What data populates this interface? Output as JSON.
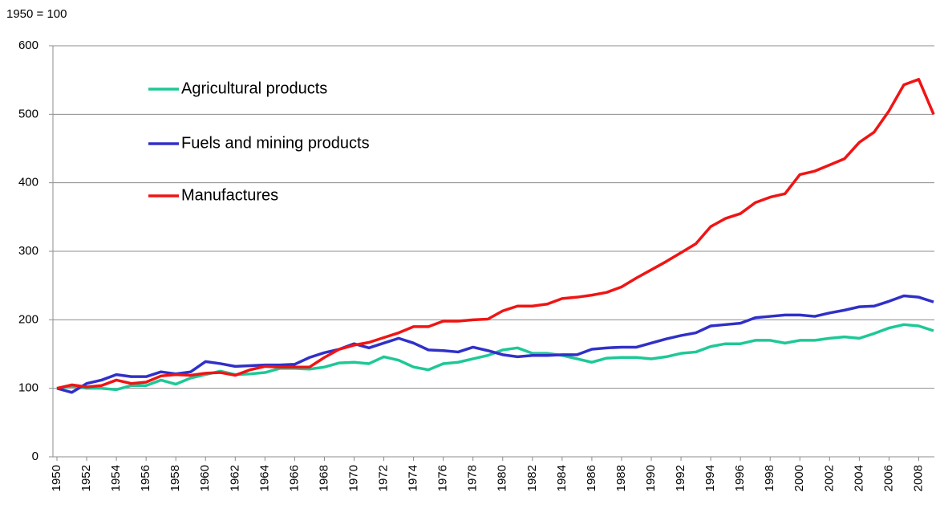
{
  "chart_data": {
    "type": "line",
    "ylabel": "1950 = 100",
    "x": [
      1950,
      1951,
      1952,
      1953,
      1954,
      1955,
      1956,
      1957,
      1958,
      1959,
      1960,
      1961,
      1962,
      1963,
      1964,
      1965,
      1966,
      1967,
      1968,
      1969,
      1970,
      1971,
      1972,
      1973,
      1974,
      1975,
      1976,
      1977,
      1978,
      1979,
      1980,
      1981,
      1982,
      1983,
      1984,
      1985,
      1986,
      1987,
      1988,
      1989,
      1990,
      1991,
      1992,
      1993,
      1994,
      1995,
      1996,
      1997,
      1998,
      1999,
      2000,
      2001,
      2002,
      2003,
      2004,
      2005,
      2006,
      2007,
      2008,
      2009
    ],
    "series": [
      {
        "name": "Agricultural products",
        "color": "#1ec896",
        "values": [
          100,
          103,
          100,
          100,
          98,
          104,
          104,
          112,
          106,
          115,
          120,
          125,
          120,
          121,
          123,
          129,
          129,
          128,
          131,
          137,
          138,
          136,
          146,
          141,
          131,
          127,
          136,
          138,
          143,
          148,
          156,
          159,
          151,
          151,
          148,
          143,
          138,
          144,
          145,
          145,
          143,
          146,
          151,
          153,
          161,
          165,
          165,
          170,
          170,
          166,
          170,
          170,
          173,
          175,
          173,
          180,
          188,
          193,
          191,
          184
        ]
      },
      {
        "name": "Fuels and mining products",
        "color": "#3030c8",
        "values": [
          100,
          94,
          107,
          112,
          120,
          117,
          117,
          124,
          121,
          124,
          139,
          136,
          132,
          133,
          134,
          134,
          135,
          145,
          152,
          157,
          165,
          159,
          166,
          173,
          166,
          156,
          155,
          153,
          160,
          155,
          149,
          146,
          148,
          148,
          149,
          149,
          157,
          159,
          160,
          160,
          166,
          172,
          177,
          181,
          191,
          193,
          195,
          203,
          205,
          207,
          207,
          205,
          210,
          214,
          219,
          220,
          227,
          235,
          233,
          226
        ]
      },
      {
        "name": "Manufactures",
        "color": "#f01414",
        "values": [
          100,
          105,
          102,
          104,
          112,
          107,
          109,
          118,
          120,
          119,
          122,
          123,
          119,
          127,
          132,
          131,
          131,
          131,
          145,
          157,
          163,
          167,
          174,
          181,
          190,
          190,
          198,
          198,
          200,
          201,
          213,
          220,
          220,
          223,
          231,
          233,
          236,
          240,
          248,
          261,
          273,
          285,
          298,
          311,
          336,
          348,
          355,
          371,
          379,
          384,
          412,
          417,
          426,
          435,
          459,
          474,
          505,
          543,
          551,
          500
        ]
      }
    ],
    "xlim": [
      1950,
      2009
    ],
    "xticks": [
      1950,
      1952,
      1954,
      1956,
      1958,
      1960,
      1962,
      1964,
      1966,
      1968,
      1970,
      1972,
      1974,
      1976,
      1978,
      1980,
      1982,
      1984,
      1986,
      1988,
      1990,
      1992,
      1994,
      1996,
      1998,
      2000,
      2002,
      2004,
      2006,
      2008
    ],
    "ylim": [
      0,
      600
    ],
    "yticks": [
      0,
      100,
      200,
      300,
      400,
      500,
      600
    ],
    "grid": true,
    "legend": "upper left"
  }
}
